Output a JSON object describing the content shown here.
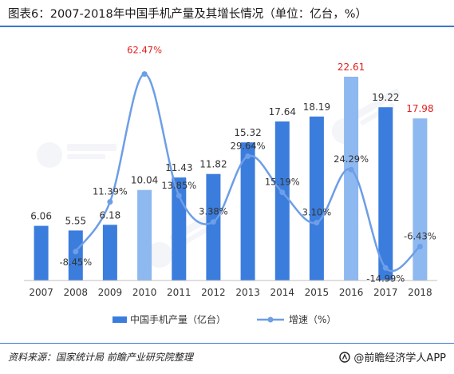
{
  "title": "图表6：2007-2018年中国手机产量及其增长情况（单位：亿台，%）",
  "source": "资料来源：国家统计局 前瞻产业研究院整理",
  "brand": "@前瞻经济学人APP",
  "colors": {
    "bar": "#3b7ddd",
    "bar_highlight": "#8db8f0",
    "line": "#6d9ee6",
    "label": "#333333",
    "label_highlight": "#e02020",
    "axis": "#bfbfbf",
    "rule": "#3a76d0"
  },
  "chart_data": {
    "type": "bar",
    "title": "",
    "xlabel": "",
    "ylabel": "",
    "grid": false,
    "legend_position": "bottom",
    "categories": [
      "2007",
      "2008",
      "2009",
      "2010",
      "2011",
      "2012",
      "2013",
      "2014",
      "2015",
      "2016",
      "2017",
      "2018"
    ],
    "series": [
      {
        "name": "中国手机产量（亿台）",
        "kind": "bar",
        "axis": "left",
        "values": [
          6.06,
          5.55,
          6.18,
          10.04,
          11.43,
          11.82,
          15.32,
          17.64,
          18.19,
          22.61,
          19.22,
          17.98
        ],
        "labels": [
          "6.06",
          "5.55",
          "6.18",
          "10.04",
          "11.43",
          "11.82",
          "15.32",
          "17.64",
          "18.19",
          "22.61",
          "19.22",
          "17.98"
        ],
        "highlight_bars": [
          3,
          9,
          11
        ],
        "highlight_labels": [
          9,
          11
        ]
      },
      {
        "name": "增速（%）",
        "kind": "line",
        "axis": "right",
        "smooth": true,
        "values": [
          null,
          -8.45,
          11.39,
          62.47,
          13.85,
          3.38,
          29.64,
          15.19,
          3.1,
          24.29,
          -14.99,
          -6.43
        ],
        "labels": [
          null,
          "-8.45%",
          "11.39%",
          "62.47%",
          "13.85%",
          "3.38%",
          "29.64%",
          "15.19%",
          "3.10%",
          "24.29%",
          "-14.99%",
          "-6.43%"
        ],
        "highlight_labels": [
          3
        ]
      }
    ],
    "ylim_left": [
      0,
      25
    ],
    "ylim_right": [
      -20,
      70
    ]
  }
}
